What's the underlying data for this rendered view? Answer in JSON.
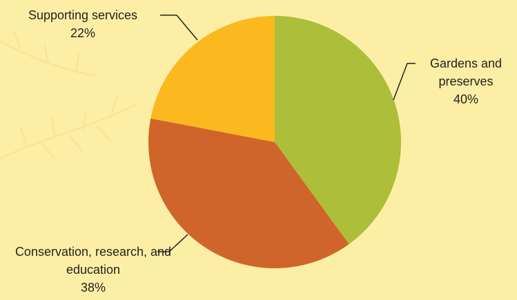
{
  "chart_data": {
    "type": "pie",
    "categories": [
      "Gardens and preserves",
      "Conservation, research, and education",
      "Supporting services"
    ],
    "values": [
      40,
      38,
      22
    ],
    "value_labels": [
      "40%",
      "38%",
      "22%"
    ],
    "colors": [
      "#adbe3a",
      "#cf652a",
      "#fbb91f"
    ]
  }
}
